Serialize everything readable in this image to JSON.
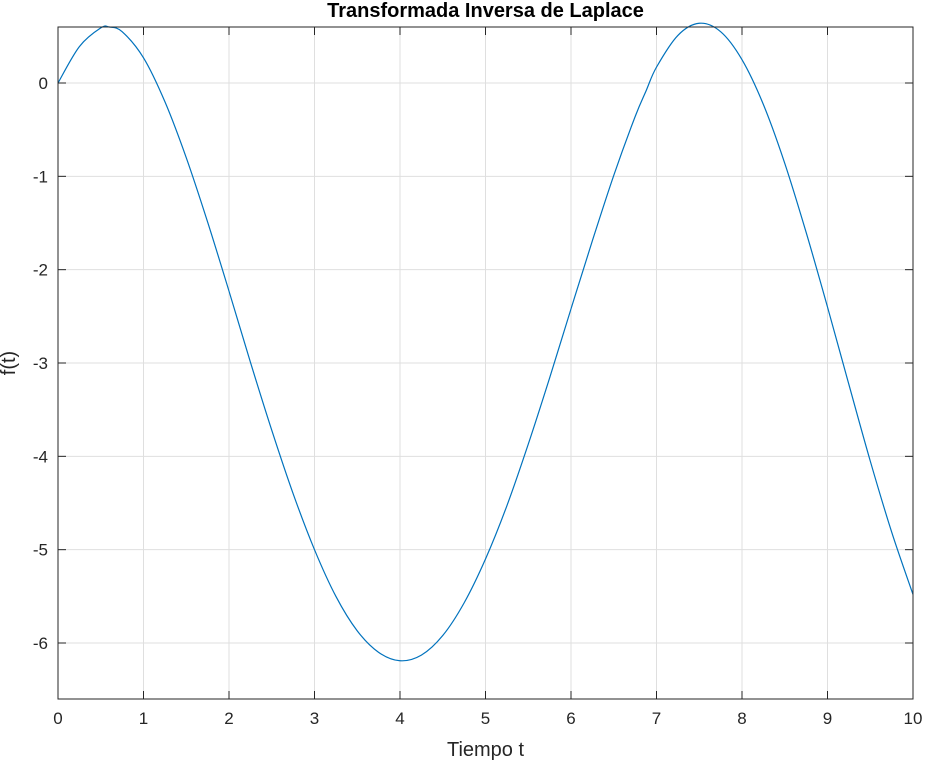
{
  "chart_data": {
    "type": "line",
    "title": "Transformada Inversa de Laplace",
    "xlabel": "Tiempo t",
    "ylabel": "f(t)",
    "xlim": [
      0,
      10
    ],
    "ylim": [
      -6.6,
      0.6
    ],
    "xticks": [
      0,
      1,
      2,
      3,
      4,
      5,
      6,
      7,
      8,
      9,
      10
    ],
    "yticks": [
      0,
      -1,
      -2,
      -3,
      -4,
      -5,
      -6
    ],
    "xtick_labels": [
      "0",
      "1",
      "2",
      "3",
      "4",
      "5",
      "6",
      "7",
      "8",
      "9",
      "10"
    ],
    "ytick_labels": [
      "0",
      "-1",
      "-2",
      "-3",
      "-4",
      "-5",
      "-6"
    ],
    "grid": true,
    "series": [
      {
        "color": "#0072BD",
        "x": [
          0,
          0.25,
          0.5,
          0.6,
          0.75,
          1,
          1.25,
          1.5,
          1.75,
          2,
          2.25,
          2.5,
          2.75,
          3,
          3.25,
          3.5,
          3.75,
          4,
          4.25,
          4.5,
          4.75,
          5,
          5.25,
          5.5,
          5.75,
          6,
          6.25,
          6.5,
          6.75,
          6.88,
          7,
          7.25,
          7.5,
          7.75,
          8,
          8.25,
          8.5,
          8.75,
          9,
          9.25,
          9.5,
          9.75,
          10
        ],
        "y": [
          0,
          0.39,
          0.59,
          0.6,
          0.55,
          0.27,
          -0.2,
          -0.8,
          -1.49,
          -2.23,
          -2.99,
          -3.72,
          -4.4,
          -5.0,
          -5.5,
          -5.87,
          -6.1,
          -6.19,
          -6.13,
          -5.92,
          -5.57,
          -5.1,
          -4.53,
          -3.87,
          -3.16,
          -2.42,
          -1.69,
          -0.99,
          -0.36,
          -0.08,
          0.17,
          0.51,
          0.64,
          0.55,
          0.25,
          -0.23,
          -0.86,
          -1.6,
          -2.4,
          -3.23,
          -4.05,
          -4.81,
          -5.48
        ]
      }
    ]
  }
}
